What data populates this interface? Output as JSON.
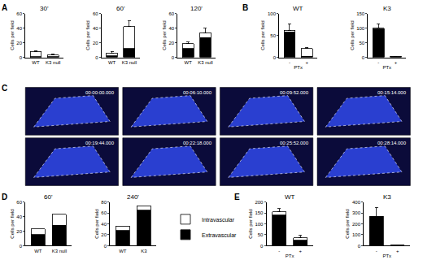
{
  "panel_labels": [
    "A",
    "B",
    "C",
    "D",
    "E"
  ],
  "movie_frames": {
    "timestamps": [
      "00:00:00.000",
      "00:06:10.000",
      "00:09:52.000",
      "00:15:14.000",
      "00:19:44.000",
      "00:22:18.000",
      "00:25:52.000",
      "00:28:14.000"
    ]
  },
  "chart_data": [
    {
      "type": "bar",
      "stacked": true,
      "title": "30'",
      "y_label": "Cells per field",
      "categories": [
        "WT",
        "K3 null"
      ],
      "series": [
        {
          "name": "Intravascular",
          "color": "#ffffff",
          "values": [
            7,
            2
          ],
          "errors": [
            1,
            1
          ]
        },
        {
          "name": "Extravascular",
          "color": "#000000",
          "values": [
            1,
            1
          ]
        }
      ],
      "ylim": [
        0,
        60
      ],
      "yticks": [
        0,
        20,
        40,
        60
      ]
    },
    {
      "type": "bar",
      "stacked": true,
      "title": "60'",
      "y_label": "Cells per field",
      "categories": [
        "WT",
        "K3 null"
      ],
      "series": [
        {
          "name": "Intravascular",
          "color": "#ffffff",
          "values": [
            4,
            30
          ],
          "errors": [
            2,
            8
          ]
        },
        {
          "name": "Extravascular",
          "color": "#000000",
          "values": [
            2,
            12
          ]
        }
      ],
      "ylim": [
        0,
        60
      ],
      "yticks": [
        0,
        20,
        40,
        60
      ]
    },
    {
      "type": "bar",
      "stacked": true,
      "title": "120'",
      "y_label": "Cells per field",
      "categories": [
        "WT",
        "K3 null"
      ],
      "series": [
        {
          "name": "Intravascular",
          "color": "#ffffff",
          "values": [
            7,
            7
          ],
          "errors": [
            2,
            6
          ]
        },
        {
          "name": "Extravascular",
          "color": "#000000",
          "values": [
            12,
            27
          ]
        }
      ],
      "ylim": [
        0,
        60
      ],
      "yticks": [
        0,
        20,
        40,
        60
      ]
    },
    {
      "type": "bar",
      "stacked": true,
      "title": "WT",
      "y_label": "Cells per field",
      "x_label": "PTx",
      "categories": [
        "-",
        "+"
      ],
      "series": [
        {
          "name": "Intravascular",
          "color": "#ffffff",
          "values": [
            4,
            18
          ],
          "errors": [
            15,
            3
          ]
        },
        {
          "name": "Extravascular",
          "color": "#000000",
          "values": [
            58,
            2
          ]
        }
      ],
      "ylim": [
        0,
        100
      ],
      "yticks": [
        0,
        50,
        100
      ]
    },
    {
      "type": "bar",
      "stacked": true,
      "title": "K3",
      "y_label": "Cells per field",
      "x_label": "PTx",
      "categories": [
        "-",
        "+"
      ],
      "series": [
        {
          "name": "Intravascular",
          "color": "#ffffff",
          "values": [
            3,
            1
          ],
          "errors": [
            15,
            1
          ]
        },
        {
          "name": "Extravascular",
          "color": "#000000",
          "values": [
            97,
            2
          ]
        }
      ],
      "ylim": [
        0,
        150
      ],
      "yticks": [
        0,
        50,
        100,
        150
      ]
    },
    {
      "type": "bar",
      "stacked": true,
      "title": "60'",
      "y_label": "Cells per field",
      "categories": [
        "WT",
        "K3 null"
      ],
      "series": [
        {
          "name": "Intravascular",
          "color": "#ffffff",
          "values": [
            8,
            15
          ]
        },
        {
          "name": "Extravascular",
          "color": "#000000",
          "values": [
            15,
            28
          ]
        }
      ],
      "ylim": [
        0,
        60
      ],
      "yticks": [
        0,
        20,
        40,
        60
      ]
    },
    {
      "type": "bar",
      "stacked": true,
      "title": "240'",
      "y_label": "Cells per field",
      "categories": [
        "WT",
        "K3"
      ],
      "series": [
        {
          "name": "Intravascular",
          "color": "#ffffff",
          "values": [
            8,
            8
          ]
        },
        {
          "name": "Extravascular",
          "color": "#000000",
          "values": [
            28,
            65
          ]
        }
      ],
      "ylim": [
        0,
        80
      ],
      "yticks": [
        0,
        20,
        40,
        60,
        80
      ]
    },
    {
      "type": "bar",
      "stacked": true,
      "title": "WT",
      "y_label": "Cells per field",
      "x_label": "PTx",
      "categories": [
        "-",
        "+"
      ],
      "series": [
        {
          "name": "Intravascular",
          "color": "#ffffff",
          "values": [
            15,
            10
          ],
          "errors": [
            15,
            12
          ]
        },
        {
          "name": "Extravascular",
          "color": "#000000",
          "values": [
            140,
            25
          ]
        }
      ],
      "ylim": [
        0,
        200
      ],
      "yticks": [
        0,
        50,
        100,
        150,
        200
      ]
    },
    {
      "type": "bar",
      "stacked": true,
      "title": "K3",
      "y_label": "Cells per field",
      "x_label": "PTx",
      "categories": [
        "-",
        "+"
      ],
      "series": [
        {
          "name": "Intravascular",
          "color": "#ffffff",
          "values": [
            0,
            1
          ],
          "errors": [
            80,
            2
          ]
        },
        {
          "name": "Extravascular",
          "color": "#000000",
          "values": [
            270,
            4
          ]
        }
      ],
      "ylim": [
        0,
        400
      ],
      "yticks": [
        0,
        100,
        200,
        300,
        400
      ]
    }
  ]
}
